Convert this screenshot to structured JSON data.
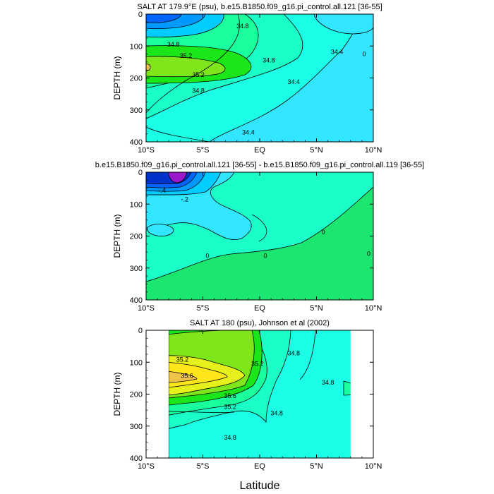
{
  "figure": {
    "xlabel": "Latitude"
  },
  "colors": {
    "lt34_4": "#33e6ff",
    "c34_4": "#1affe6",
    "c34_6": "#1affc8",
    "c34_8": "#1aff9e",
    "c35_0": "#1ae61a",
    "c35_2": "#7ee61a",
    "c35_4": "#e6f01a",
    "c35_6": "#ffe61a",
    "c35_8": "#f0c34a",
    "fresh1": "#00ccff",
    "fresh2": "#0099ff",
    "fresh3": "#0066ff",
    "fresh4": "#0033cc",
    "fresh5": "#6a1aff",
    "fresh6": "#9a1acc",
    "d_m2": "#33e6ff",
    "d_0": "#1affc8",
    "d_p2": "#1ae670",
    "gap": "#ffffff",
    "line": "#000000"
  },
  "chart_data": [
    {
      "type": "contour",
      "title": "SALT AT 179.9°E (psu), b.e15.B1850.f09_g16.pi_control.all.121 [36-55]",
      "ylabel": "DEPTH (m)",
      "xlim": [
        -10,
        10
      ],
      "ylim": [
        0,
        400
      ],
      "xticks": [
        "10°S",
        "5°S",
        "EQ",
        "5°N",
        "10°N"
      ],
      "yticks": [
        "0",
        "100",
        "200",
        "300",
        "400"
      ],
      "contour_labels": [
        {
          "text": "34.8",
          "lat": -1.5,
          "depth": 38
        },
        {
          "text": "34.8",
          "lat": -7.6,
          "depth": 95
        },
        {
          "text": "35.2",
          "lat": -6.5,
          "depth": 130
        },
        {
          "text": "35.2",
          "lat": -5.4,
          "depth": 190
        },
        {
          "text": "34.8",
          "lat": -5.4,
          "depth": 240
        },
        {
          "text": "34.8",
          "lat": 0.8,
          "depth": 145
        },
        {
          "text": "34.4",
          "lat": 3.0,
          "depth": 212
        },
        {
          "text": "34.4",
          "lat": 6.8,
          "depth": 118
        },
        {
          "text": "34.4",
          "lat": -1.0,
          "depth": 370
        },
        {
          "text": "0",
          "lat": 9.2,
          "depth": 125
        }
      ]
    },
    {
      "type": "contour",
      "title": "b.e15.B1850.f09_g16.pi_control.all.121 [36-55] - b.e15.B1850.f09_g16.pi_control.all.119 [36-55]",
      "ylabel": "DEPTH (m)",
      "xlim": [
        -10,
        10
      ],
      "ylim": [
        0,
        400
      ],
      "xticks": [
        "10°S",
        "5°S",
        "EQ",
        "5°N",
        "10°N"
      ],
      "yticks": [
        "0",
        "100",
        "200",
        "300",
        "400"
      ],
      "contour_labels": [
        {
          "text": "-.4",
          "lat": -8.6,
          "depth": 58
        },
        {
          "text": "-.2",
          "lat": -6.6,
          "depth": 85
        },
        {
          "text": "0",
          "lat": -4.6,
          "depth": 262
        },
        {
          "text": "0",
          "lat": 0.5,
          "depth": 262
        },
        {
          "text": "0",
          "lat": 5.6,
          "depth": 188
        },
        {
          "text": "0",
          "lat": 9.6,
          "depth": 255
        }
      ]
    },
    {
      "type": "contour",
      "title": "SALT AT 180 (psu), Johnson et al (2002)",
      "ylabel": "DEPTH (m)",
      "xlim": [
        -10,
        10
      ],
      "ylim": [
        0,
        400
      ],
      "data_lat_range": [
        -8,
        8
      ],
      "xticks": [
        "10°S",
        "5°S",
        "EQ",
        "5°N",
        "10°N"
      ],
      "yticks": [
        "0",
        "100",
        "200",
        "300",
        "400"
      ],
      "contour_labels": [
        {
          "text": "35.2",
          "lat": -6.8,
          "depth": 92
        },
        {
          "text": "35.6",
          "lat": -6.4,
          "depth": 143
        },
        {
          "text": "35.6",
          "lat": -2.6,
          "depth": 205
        },
        {
          "text": "35.2",
          "lat": -2.6,
          "depth": 240
        },
        {
          "text": "35.2",
          "lat": -0.2,
          "depth": 105
        },
        {
          "text": "34.8",
          "lat": 1.5,
          "depth": 260
        },
        {
          "text": "34.8",
          "lat": -2.6,
          "depth": 336
        },
        {
          "text": "34.8",
          "lat": 3.0,
          "depth": 72
        },
        {
          "text": "34.8",
          "lat": 6.0,
          "depth": 163
        }
      ]
    }
  ]
}
